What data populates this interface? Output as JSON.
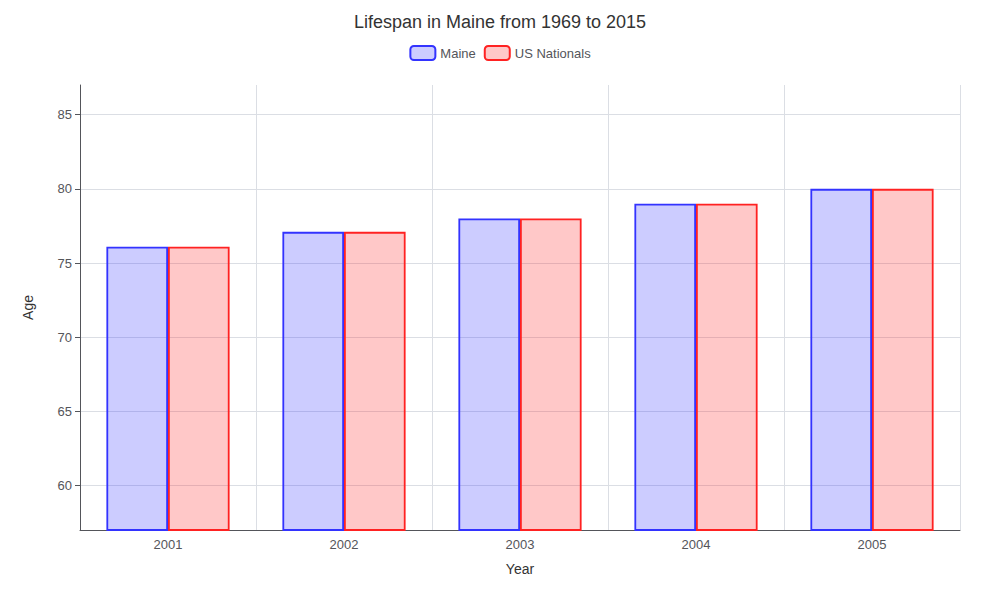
{
  "chart_data": {
    "type": "bar",
    "title": "Lifespan in Maine from 1969 to 2015",
    "xlabel": "Year",
    "ylabel": "Age",
    "categories": [
      "2001",
      "2002",
      "2003",
      "2004",
      "2005"
    ],
    "series": [
      {
        "name": "Maine",
        "color": "#3333ff",
        "values": [
          76.1,
          77.1,
          78.0,
          79.0,
          80.0
        ]
      },
      {
        "name": "US Nationals",
        "color": "#ff2222",
        "values": [
          76.1,
          77.1,
          78.0,
          79.0,
          80.0
        ]
      }
    ],
    "ylim": [
      57,
      87
    ],
    "yticks": [
      60,
      65,
      70,
      75,
      80,
      85
    ],
    "grid": true,
    "legend": "top"
  }
}
